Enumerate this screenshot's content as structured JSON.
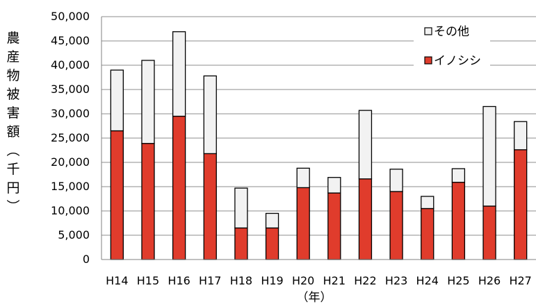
{
  "chart_data": {
    "type": "bar",
    "stacked": true,
    "categories": [
      "H14",
      "H15",
      "H16",
      "H17",
      "H18",
      "H19",
      "H20",
      "H21",
      "H22",
      "H23",
      "H24",
      "H25",
      "H26",
      "H27"
    ],
    "series": [
      {
        "name": "イノシシ",
        "color": "#e03c2c",
        "values": [
          26500,
          23900,
          29500,
          21800,
          6500,
          6500,
          14800,
          13700,
          16600,
          14000,
          10500,
          15900,
          11000,
          22600
        ]
      },
      {
        "name": "その他",
        "color": "#f2f2f2",
        "values": [
          12500,
          17100,
          17400,
          16000,
          8200,
          3000,
          4000,
          3200,
          14100,
          4600,
          2500,
          2800,
          20500,
          5800
        ]
      }
    ],
    "ylabel": "農産物被害額（千円）",
    "xlabel": "（年）",
    "ylim": [
      0,
      50000
    ],
    "yticks": [
      0,
      5000,
      10000,
      15000,
      20000,
      25000,
      30000,
      35000,
      40000,
      45000,
      50000
    ],
    "ytick_labels": [
      "0",
      "5,000",
      "10,000",
      "15,000",
      "20,000",
      "25,000",
      "30,000",
      "35,000",
      "40,000",
      "45,000",
      "50,000"
    ],
    "grid": true,
    "legend": {
      "position": "top-right",
      "entries": [
        "その他",
        "イノシシ"
      ]
    }
  }
}
